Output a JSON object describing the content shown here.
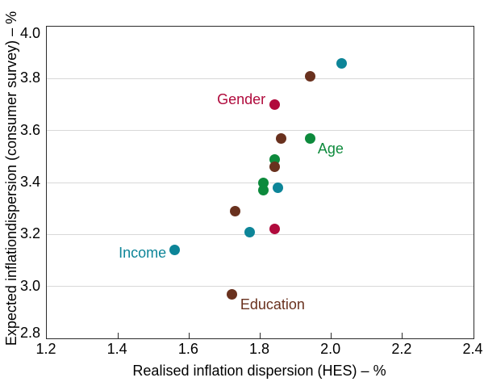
{
  "chart_data": {
    "type": "scatter",
    "title": "",
    "x_axis": {
      "label": "Realised inflation dispersion (HES) – %",
      "ticks": [
        "1.2",
        "1.4",
        "1.6",
        "1.8",
        "2.0",
        "2.2",
        "2.4"
      ],
      "range": [
        1.2,
        2.4
      ]
    },
    "y_axis": {
      "label": "Expected inflationdispersion (consumer survey) – %",
      "ticks": [
        "2.8",
        "3.0",
        "3.2",
        "3.4",
        "3.6",
        "3.8",
        "4.0"
      ],
      "range": [
        2.8,
        4.0
      ]
    },
    "grid": "horizontal-only",
    "legend_position": "inline-annotations",
    "frame_color": "#2b2b2b",
    "gridline_color": "#d8d8d8",
    "series": [
      {
        "name": "Income",
        "color": "#0d8598",
        "points": [
          [
            2.03,
            3.86
          ],
          [
            1.85,
            3.38
          ],
          [
            1.77,
            3.21
          ],
          [
            1.56,
            3.14
          ]
        ],
        "annotation": {
          "text": "Income",
          "x": 1.536,
          "y": 3.13,
          "anchor": "end"
        }
      },
      {
        "name": "Gender",
        "color": "#b00a3c",
        "points": [
          [
            1.84,
            3.7
          ],
          [
            1.84,
            3.22
          ]
        ],
        "annotation": {
          "text": "Gender",
          "x": 1.815,
          "y": 3.72,
          "anchor": "end"
        }
      },
      {
        "name": "Age",
        "color": "#0d8a3c",
        "points": [
          [
            1.94,
            3.57
          ],
          [
            1.84,
            3.49
          ],
          [
            1.81,
            3.4
          ],
          [
            1.81,
            3.37
          ]
        ],
        "annotation": {
          "text": "Age",
          "x": 1.962,
          "y": 3.53,
          "anchor": "start"
        }
      },
      {
        "name": "Education",
        "color": "#69311e",
        "points": [
          [
            1.94,
            3.81
          ],
          [
            1.86,
            3.57
          ],
          [
            1.84,
            3.46
          ],
          [
            1.73,
            3.29
          ],
          [
            1.72,
            2.97
          ]
        ],
        "annotation": {
          "text": "Education",
          "x": 1.744,
          "y": 2.93,
          "anchor": "start"
        }
      }
    ]
  }
}
